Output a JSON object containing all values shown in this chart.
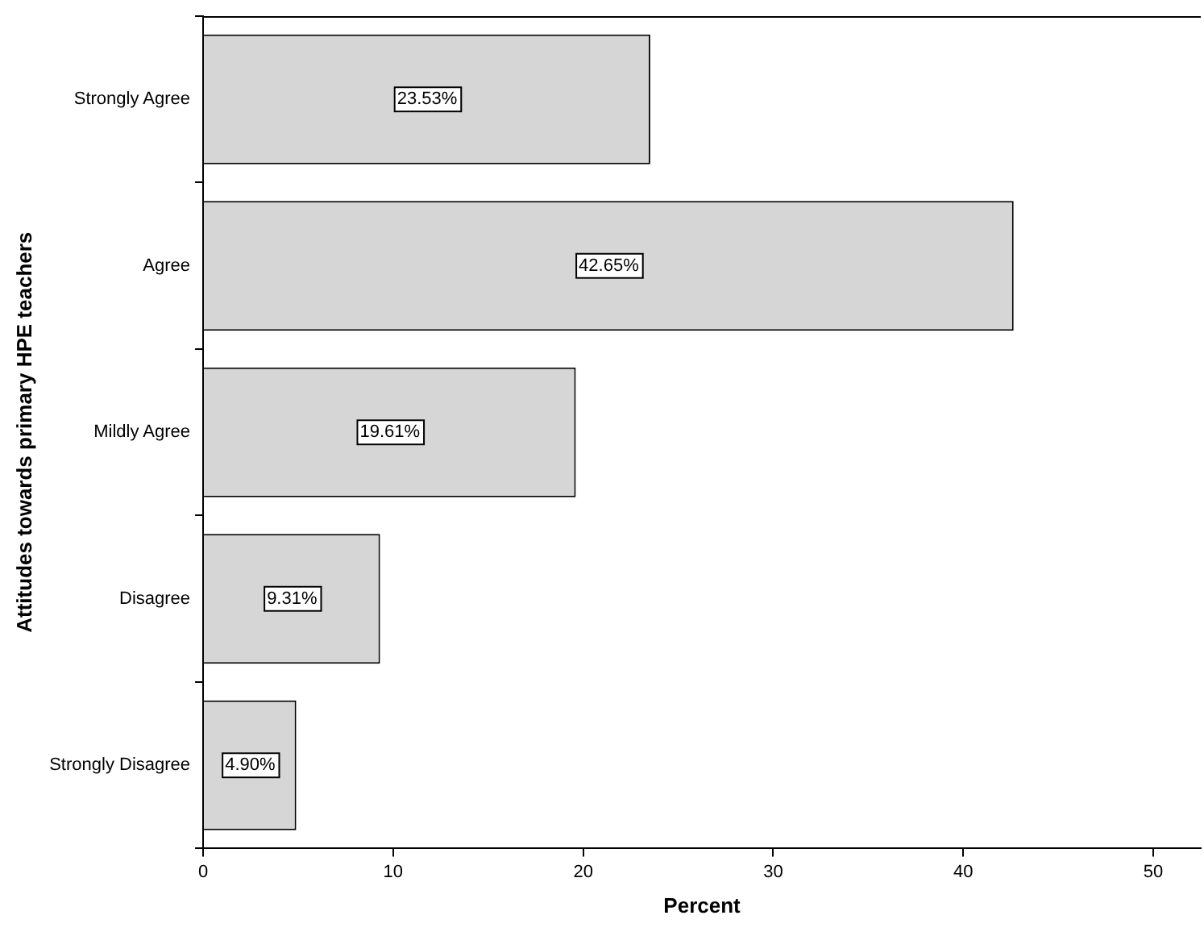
{
  "chart_data": {
    "type": "bar",
    "orientation": "horizontal",
    "ylabel": "Attitudes towards primary HPE teachers",
    "xlabel": "Percent",
    "categories": [
      "Strongly Agree",
      "Agree",
      "Mildly Agree",
      "Disagree",
      "Strongly Disagree"
    ],
    "values": [
      23.53,
      42.65,
      19.61,
      9.31,
      4.9
    ],
    "value_labels": [
      "23.53%",
      "42.65%",
      "19.61%",
      "9.31%",
      "4.90%"
    ],
    "color": "#d6d6d6",
    "xlim": [
      0,
      52.5
    ],
    "xticks": [
      0,
      10,
      20,
      30,
      40,
      50
    ],
    "grid": false,
    "legend": false
  }
}
